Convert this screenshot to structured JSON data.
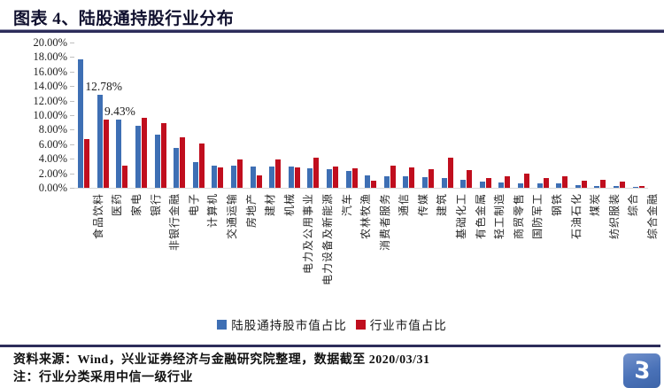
{
  "header": {
    "title": "图表 4、陆股通持股行业分布"
  },
  "chart_data": {
    "type": "bar",
    "title": "陆股通持股行业分布",
    "categories": [
      "食品饮料",
      "医药",
      "家电",
      "银行",
      "非银行金融",
      "电子",
      "计算机",
      "交通运输",
      "房地产",
      "建材",
      "机械",
      "电力及公用事业",
      "电力设备及新能源",
      "汽车",
      "农林牧渔",
      "消费者服务",
      "通信",
      "传媒",
      "建筑",
      "基础化工",
      "有色金属",
      "轻工制造",
      "商贸零售",
      "国防军工",
      "钢铁",
      "石油石化",
      "煤炭",
      "纺织服装",
      "综合",
      "综合金融"
    ],
    "series": [
      {
        "name": "陆股通持股市值占比",
        "color": "#3E6FB4",
        "values": [
          17.7,
          12.78,
          9.43,
          8.5,
          7.3,
          5.5,
          3.5,
          3.1,
          3.0,
          2.9,
          2.9,
          2.9,
          2.7,
          2.6,
          2.3,
          1.75,
          1.6,
          1.55,
          1.45,
          1.35,
          1.1,
          0.85,
          0.7,
          0.65,
          0.65,
          0.65,
          0.4,
          0.25,
          0.2,
          0.1
        ]
      },
      {
        "name": "行业市值占比",
        "color": "#C00E1E",
        "values": [
          6.7,
          9.4,
          3.0,
          9.7,
          8.9,
          7.0,
          6.1,
          2.8,
          3.9,
          1.7,
          3.9,
          2.8,
          4.2,
          2.9,
          2.7,
          1.0,
          3.1,
          2.8,
          2.6,
          4.1,
          2.45,
          1.35,
          1.6,
          1.9,
          1.35,
          1.6,
          0.95,
          1.05,
          0.85,
          0.2
        ]
      }
    ],
    "ylim": [
      0,
      20
    ],
    "ytick_step": 2,
    "ytick_labels": [
      "0.00%",
      "2.00%",
      "4.00%",
      "6.00%",
      "8.00%",
      "10.00%",
      "12.00%",
      "14.00%",
      "16.00%",
      "18.00%",
      "20.00%"
    ],
    "grid": false,
    "legend_position": "bottom",
    "annotations": [
      {
        "category": "医药",
        "series": "陆股通持股市值占比",
        "value": 12.78,
        "text": "12.78%"
      },
      {
        "category": "家电",
        "series": "陆股通持股市值占比",
        "value": 9.43,
        "text": "9.43%"
      }
    ]
  },
  "footer": {
    "source": "资料来源：Wind，兴业证券经济与金融研究院整理，数据截至 2020/03/31",
    "note": "注：行业分类采用中信一级行业"
  },
  "logo": {
    "icon": "industrial-securities-logo",
    "glyph": "Ɛ",
    "color": "#4A72B8"
  }
}
